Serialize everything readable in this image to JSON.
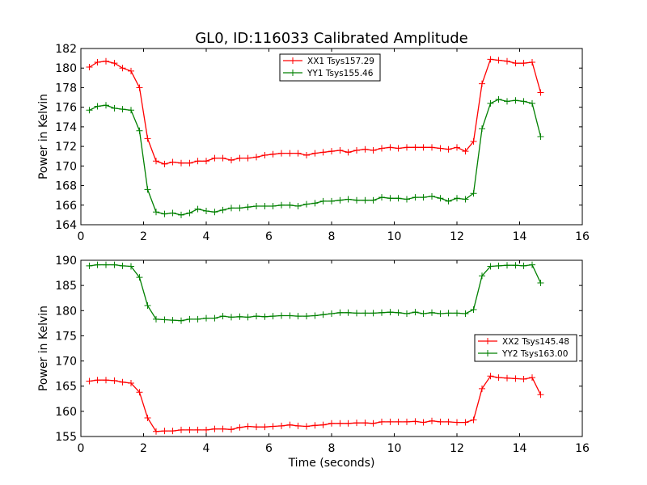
{
  "chart_data": [
    {
      "type": "line",
      "title": "GL0, ID:116033 Calibrated Amplitude",
      "xlabel": "",
      "ylabel": "Power in Kelvin",
      "xlim": [
        0,
        16
      ],
      "ylim": [
        164,
        182
      ],
      "xticks": [
        "0",
        "2",
        "4",
        "6",
        "8",
        "10",
        "12",
        "14",
        "16"
      ],
      "yticks": [
        "164",
        "166",
        "168",
        "170",
        "172",
        "174",
        "176",
        "178",
        "180",
        "182"
      ],
      "legend_position": "top-center",
      "grid": false,
      "x": [
        0.27,
        0.53,
        0.8,
        1.07,
        1.33,
        1.6,
        1.87,
        2.13,
        2.4,
        2.67,
        2.93,
        3.2,
        3.47,
        3.73,
        4.0,
        4.27,
        4.53,
        4.8,
        5.07,
        5.33,
        5.6,
        5.87,
        6.13,
        6.4,
        6.67,
        6.93,
        7.2,
        7.47,
        7.73,
        8.0,
        8.27,
        8.53,
        8.8,
        9.07,
        9.33,
        9.6,
        9.87,
        10.13,
        10.4,
        10.67,
        10.93,
        11.2,
        11.47,
        11.73,
        12.0,
        12.27,
        12.53,
        12.8,
        13.07,
        13.33,
        13.6,
        13.87,
        14.13,
        14.4,
        14.67
      ],
      "series": [
        {
          "name": "XX1 Tsys157.29",
          "color": "#ff0000",
          "values": [
            180.1,
            180.6,
            180.7,
            180.5,
            180.0,
            179.7,
            178.0,
            172.8,
            170.5,
            170.2,
            170.4,
            170.3,
            170.3,
            170.5,
            170.5,
            170.8,
            170.8,
            170.6,
            170.8,
            170.8,
            170.9,
            171.1,
            171.2,
            171.3,
            171.3,
            171.3,
            171.1,
            171.3,
            171.4,
            171.5,
            171.6,
            171.4,
            171.6,
            171.7,
            171.6,
            171.8,
            171.9,
            171.8,
            171.9,
            171.9,
            171.9,
            171.9,
            171.8,
            171.7,
            171.9,
            171.5,
            172.5,
            178.4,
            180.9,
            180.8,
            180.7,
            180.5,
            180.5,
            180.6,
            177.5
          ]
        },
        {
          "name": "YY1 Tsys155.46",
          "color": "#008000",
          "values": [
            175.7,
            176.1,
            176.2,
            175.9,
            175.8,
            175.7,
            173.6,
            167.6,
            165.3,
            165.1,
            165.2,
            165.0,
            165.2,
            165.6,
            165.4,
            165.3,
            165.5,
            165.7,
            165.7,
            165.8,
            165.9,
            165.9,
            165.9,
            166.0,
            166.0,
            165.9,
            166.1,
            166.2,
            166.4,
            166.4,
            166.5,
            166.6,
            166.5,
            166.5,
            166.5,
            166.8,
            166.7,
            166.7,
            166.6,
            166.8,
            166.8,
            166.9,
            166.7,
            166.4,
            166.7,
            166.6,
            167.2,
            173.8,
            176.4,
            176.8,
            176.6,
            176.7,
            176.6,
            176.4,
            173.0
          ]
        }
      ]
    },
    {
      "type": "line",
      "title": "",
      "xlabel": "Time (seconds)",
      "ylabel": "Power in Kelvin",
      "xlim": [
        0,
        16
      ],
      "ylim": [
        155,
        190
      ],
      "xticks": [
        "0",
        "2",
        "4",
        "6",
        "8",
        "10",
        "12",
        "14",
        "16"
      ],
      "yticks": [
        "155",
        "160",
        "165",
        "170",
        "175",
        "180",
        "185",
        "190"
      ],
      "legend_position": "center-right",
      "grid": false,
      "x": [
        0.27,
        0.53,
        0.8,
        1.07,
        1.33,
        1.6,
        1.87,
        2.13,
        2.4,
        2.67,
        2.93,
        3.2,
        3.47,
        3.73,
        4.0,
        4.27,
        4.53,
        4.8,
        5.07,
        5.33,
        5.6,
        5.87,
        6.13,
        6.4,
        6.67,
        6.93,
        7.2,
        7.47,
        7.73,
        8.0,
        8.27,
        8.53,
        8.8,
        9.07,
        9.33,
        9.6,
        9.87,
        10.13,
        10.4,
        10.67,
        10.93,
        11.2,
        11.47,
        11.73,
        12.0,
        12.27,
        12.53,
        12.8,
        13.07,
        13.33,
        13.6,
        13.87,
        14.13,
        14.4,
        14.67
      ],
      "series": [
        {
          "name": "XX2 Tsys145.48",
          "color": "#ff0000",
          "values": [
            166.0,
            166.2,
            166.2,
            166.1,
            165.8,
            165.6,
            163.8,
            158.7,
            156.0,
            156.1,
            156.1,
            156.3,
            156.3,
            156.3,
            156.3,
            156.5,
            156.5,
            156.4,
            156.8,
            157.0,
            156.9,
            156.9,
            157.0,
            157.1,
            157.3,
            157.1,
            157.0,
            157.2,
            157.3,
            157.6,
            157.6,
            157.6,
            157.7,
            157.7,
            157.6,
            157.9,
            157.9,
            157.9,
            157.9,
            158.0,
            157.8,
            158.1,
            157.9,
            157.9,
            157.8,
            157.8,
            158.3,
            164.5,
            167.0,
            166.7,
            166.6,
            166.5,
            166.4,
            166.7,
            163.3
          ]
        },
        {
          "name": "YY2 Tsys163.00",
          "color": "#008000",
          "values": [
            188.9,
            189.1,
            189.1,
            189.1,
            188.9,
            188.8,
            186.6,
            181.0,
            178.3,
            178.2,
            178.1,
            178.0,
            178.3,
            178.3,
            178.5,
            178.5,
            178.9,
            178.7,
            178.8,
            178.7,
            178.9,
            178.8,
            178.9,
            179.0,
            179.0,
            178.9,
            178.9,
            179.0,
            179.2,
            179.4,
            179.6,
            179.6,
            179.5,
            179.5,
            179.5,
            179.6,
            179.7,
            179.6,
            179.4,
            179.7,
            179.4,
            179.6,
            179.4,
            179.5,
            179.5,
            179.4,
            180.2,
            186.9,
            188.8,
            188.9,
            189.0,
            189.0,
            188.9,
            189.1,
            185.5
          ]
        }
      ]
    }
  ]
}
